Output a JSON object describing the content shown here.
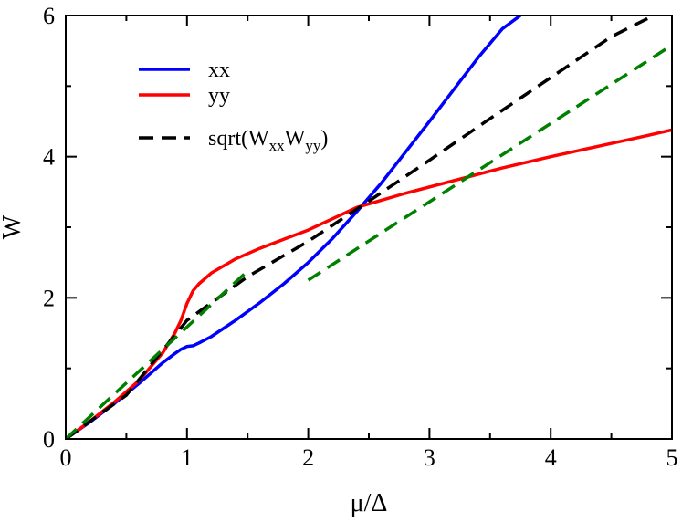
{
  "chart_data": {
    "type": "line",
    "title": "",
    "xlabel": "μ/Δ",
    "ylabel": "W",
    "xlim": [
      0,
      5
    ],
    "ylim": [
      0,
      6
    ],
    "xticks": [
      "0",
      "1",
      "2",
      "3",
      "4",
      "5"
    ],
    "yticks": [
      "0",
      "2",
      "4",
      "6"
    ],
    "grid": false,
    "legend_position": "top-left",
    "legend_entries": [
      {
        "label": "xx",
        "color": "#0000ff",
        "dash": false
      },
      {
        "label": "yy",
        "color": "#ff0000",
        "dash": false
      },
      {
        "label_prefix": "sqrt(W",
        "sub1": "xx",
        "mid": "W",
        "sub2": "yy",
        "label_suffix": ")",
        "color": "#000000",
        "dash": true
      }
    ],
    "series": [
      {
        "name": "xx",
        "color": "#0000ff",
        "dash": false,
        "x": [
          0,
          0.2,
          0.4,
          0.6,
          0.7,
          0.8,
          0.9,
          0.95,
          1.0,
          1.05,
          1.1,
          1.2,
          1.4,
          1.6,
          1.8,
          2.0,
          2.2,
          2.4,
          2.6,
          2.8,
          3.0,
          3.2,
          3.4,
          3.6,
          3.75
        ],
        "y": [
          0,
          0.24,
          0.5,
          0.78,
          0.93,
          1.08,
          1.21,
          1.27,
          1.31,
          1.32,
          1.36,
          1.45,
          1.68,
          1.93,
          2.2,
          2.5,
          2.84,
          3.22,
          3.62,
          4.06,
          4.5,
          4.95,
          5.4,
          5.81,
          6.0
        ]
      },
      {
        "name": "yy",
        "color": "#ff0000",
        "dash": false,
        "x": [
          0,
          0.2,
          0.4,
          0.6,
          0.8,
          0.9,
          0.95,
          1.0,
          1.05,
          1.1,
          1.2,
          1.4,
          1.6,
          1.8,
          2.0,
          2.4,
          2.8,
          3.2,
          3.6,
          4.0,
          4.4,
          4.8,
          5.0
        ],
        "y": [
          0,
          0.25,
          0.52,
          0.82,
          1.22,
          1.5,
          1.68,
          1.92,
          2.1,
          2.2,
          2.35,
          2.55,
          2.7,
          2.83,
          2.96,
          3.28,
          3.48,
          3.66,
          3.84,
          4.0,
          4.15,
          4.3,
          4.38
        ]
      },
      {
        "name": "sqrt(WxxWyy)",
        "color": "#000000",
        "dash": true,
        "x": [
          0,
          0.5,
          1.0,
          1.5,
          2.0,
          2.5,
          3.0,
          3.5,
          4.0,
          4.5,
          4.85
        ],
        "y": [
          0,
          0.62,
          1.68,
          2.3,
          2.8,
          3.37,
          3.95,
          4.54,
          5.12,
          5.7,
          6.0
        ]
      },
      {
        "name": "asymptote-low",
        "color": "#008000",
        "dash": true,
        "x": [
          0.0,
          1.5
        ],
        "y": [
          0.0,
          2.38
        ]
      },
      {
        "name": "asymptote-high",
        "color": "#008000",
        "dash": true,
        "x": [
          2.0,
          5.0
        ],
        "y": [
          2.25,
          5.58
        ]
      }
    ]
  }
}
